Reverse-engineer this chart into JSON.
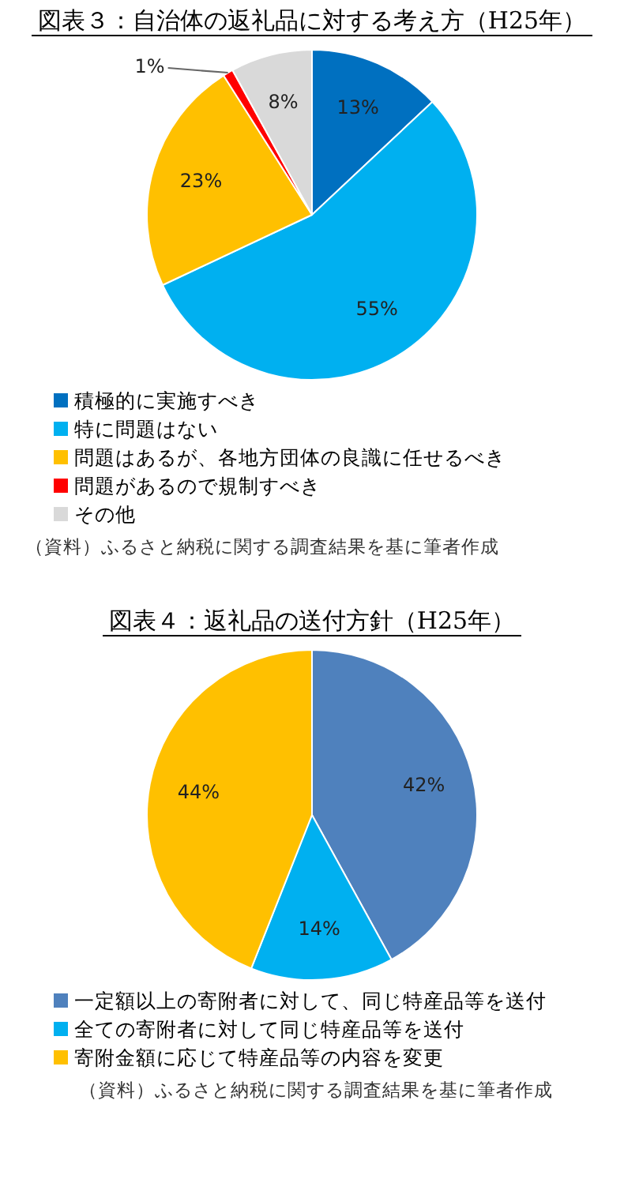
{
  "chart_data": [
    {
      "type": "pie",
      "title": "図表３：自治体の返礼品に対する考え方（H25年）",
      "categories": [
        "積極的に実施すべき",
        "特に問題はない",
        "問題はあるが、各地方団体の良識に任せるべき",
        "問題があるので規制すべき",
        "その他"
      ],
      "values": [
        13,
        55,
        23,
        1,
        8
      ],
      "colors": [
        "#0070c0",
        "#00b0f0",
        "#ffc000",
        "#ff0000",
        "#d9d9d9"
      ],
      "value_labels": [
        "13%",
        "55%",
        "23%",
        "1%",
        "8%"
      ],
      "legend": "bottom",
      "annotations": [
        "（資料）ふるさと納税に関する調査結果を基に筆者作成"
      ]
    },
    {
      "type": "pie",
      "title": "図表４：返礼品の送付方針（H25年）",
      "categories": [
        "一定額以上の寄附者に対して、同じ特産品等を送付",
        "全ての寄附者に対して同じ特産品等を送付",
        "寄附金額に応じて特産品等の内容を変更"
      ],
      "values": [
        42,
        14,
        44
      ],
      "colors": [
        "#4f81bd",
        "#00b0f0",
        "#ffc000"
      ],
      "value_labels": [
        "42%",
        "14%",
        "44%"
      ],
      "legend": "bottom",
      "annotations": [
        "（資料）ふるさと納税に関する調査結果を基に筆者作成"
      ]
    }
  ]
}
